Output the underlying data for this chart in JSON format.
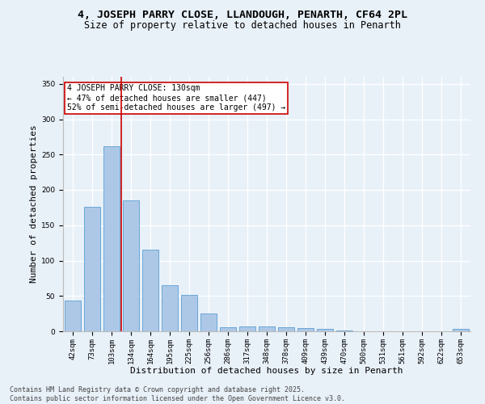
{
  "title_line1": "4, JOSEPH PARRY CLOSE, LLANDOUGH, PENARTH, CF64 2PL",
  "title_line2": "Size of property relative to detached houses in Penarth",
  "xlabel": "Distribution of detached houses by size in Penarth",
  "ylabel": "Number of detached properties",
  "categories": [
    "42sqm",
    "73sqm",
    "103sqm",
    "134sqm",
    "164sqm",
    "195sqm",
    "225sqm",
    "256sqm",
    "286sqm",
    "317sqm",
    "348sqm",
    "378sqm",
    "409sqm",
    "439sqm",
    "470sqm",
    "500sqm",
    "531sqm",
    "561sqm",
    "592sqm",
    "622sqm",
    "653sqm"
  ],
  "values": [
    44,
    176,
    262,
    185,
    115,
    65,
    51,
    25,
    6,
    7,
    7,
    6,
    5,
    3,
    1,
    0,
    0,
    0,
    0,
    0,
    3
  ],
  "bar_color": "#adc8e6",
  "bar_edge_color": "#5a9fd4",
  "vline_color": "#cc0000",
  "annotation_text": "4 JOSEPH PARRY CLOSE: 130sqm\n← 47% of detached houses are smaller (447)\n52% of semi-detached houses are larger (497) →",
  "annotation_box_color": "white",
  "annotation_box_edge": "#cc0000",
  "ylim": [
    0,
    360
  ],
  "yticks": [
    0,
    50,
    100,
    150,
    200,
    250,
    300,
    350
  ],
  "footer": "Contains HM Land Registry data © Crown copyright and database right 2025.\nContains public sector information licensed under the Open Government Licence v3.0.",
  "background_color": "#e8f0f8",
  "plot_bg_color": "#e8f0f8",
  "grid_color": "#ffffff",
  "title_fontsize": 9.5,
  "subtitle_fontsize": 8.5,
  "axis_label_fontsize": 8,
  "tick_fontsize": 6.5,
  "annotation_fontsize": 7,
  "footer_fontsize": 6
}
